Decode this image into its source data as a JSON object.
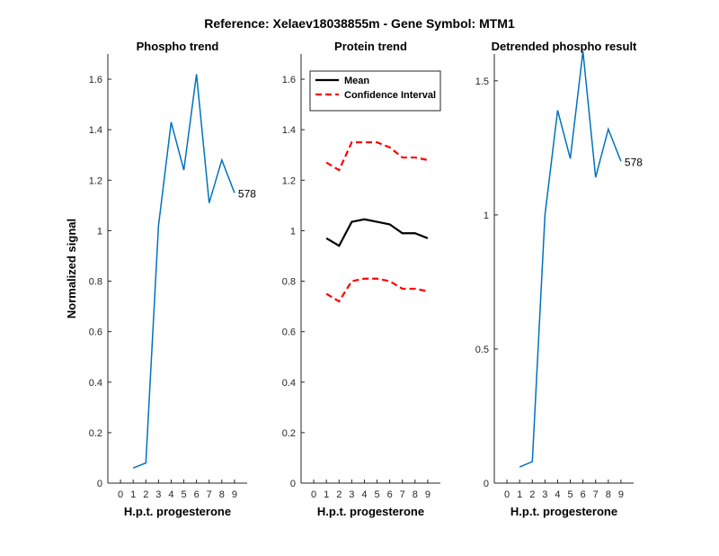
{
  "figure": {
    "title": "Reference:  Xelaev18038855m - Gene Symbol:  MTM1"
  },
  "chart_data": [
    {
      "type": "line",
      "title": "Phospho trend",
      "xlabel": "H.p.t. progesterone",
      "ylabel": "Normalized signal",
      "xlim": [
        -1,
        10
      ],
      "ylim": [
        0,
        1.7
      ],
      "xticks": [
        0,
        1,
        2,
        3,
        4,
        5,
        6,
        7,
        8,
        9
      ],
      "yticks": [
        0,
        0.2,
        0.4,
        0.6,
        0.8,
        1,
        1.2,
        1.4,
        1.6
      ],
      "x": [
        1,
        2,
        3,
        4,
        5,
        6,
        7,
        8,
        9
      ],
      "series": [
        {
          "values": [
            0.06,
            0.08,
            1.02,
            1.43,
            1.24,
            1.62,
            1.11,
            1.28,
            1.15
          ],
          "color": "#0072BD",
          "dash": ""
        }
      ],
      "annotations": [
        {
          "text": "578",
          "x": 9,
          "y": 1.15
        }
      ],
      "legend": null
    },
    {
      "type": "line",
      "title": "Protein trend",
      "xlabel": "H.p.t. progesterone",
      "ylabel": "",
      "xlim": [
        -1,
        10
      ],
      "ylim": [
        0,
        1.7
      ],
      "xticks": [
        0,
        1,
        2,
        3,
        4,
        5,
        6,
        7,
        8,
        9
      ],
      "yticks": [
        0,
        0.2,
        0.4,
        0.6,
        0.8,
        1,
        1.2,
        1.4,
        1.6
      ],
      "x": [
        1,
        2,
        3,
        4,
        5,
        6,
        7,
        8,
        9
      ],
      "series": [
        {
          "name": "Mean",
          "values": [
            0.97,
            0.94,
            1.035,
            1.045,
            1.035,
            1.025,
            0.99,
            0.99,
            0.97
          ],
          "color": "#000000",
          "dash": ""
        },
        {
          "name": "Confidence Interval",
          "values": [
            1.27,
            1.24,
            1.35,
            1.35,
            1.35,
            1.33,
            1.29,
            1.29,
            1.28
          ],
          "color": "#FF0000",
          "dash": "7,4"
        },
        {
          "values": [
            0.75,
            0.72,
            0.8,
            0.81,
            0.81,
            0.8,
            0.77,
            0.77,
            0.76
          ],
          "color": "#FF0000",
          "dash": "7,4"
        }
      ],
      "annotations": [],
      "legend": "top-left"
    },
    {
      "type": "line",
      "title": "Detrended phospho result",
      "xlabel": "H.p.t. progesterone",
      "ylabel": "",
      "xlim": [
        -1,
        10
      ],
      "ylim": [
        0,
        1.6
      ],
      "xticks": [
        0,
        1,
        2,
        3,
        4,
        5,
        6,
        7,
        8,
        9
      ],
      "yticks": [
        0,
        0.5,
        1,
        1.5
      ],
      "x": [
        1,
        2,
        3,
        4,
        5,
        6,
        7,
        8,
        9
      ],
      "series": [
        {
          "values": [
            0.06,
            0.08,
            1.0,
            1.39,
            1.21,
            1.61,
            1.14,
            1.32,
            1.2
          ],
          "color": "#0072BD",
          "dash": ""
        }
      ],
      "annotations": [
        {
          "text": "578",
          "x": 9,
          "y": 1.2
        }
      ],
      "legend": null
    }
  ]
}
